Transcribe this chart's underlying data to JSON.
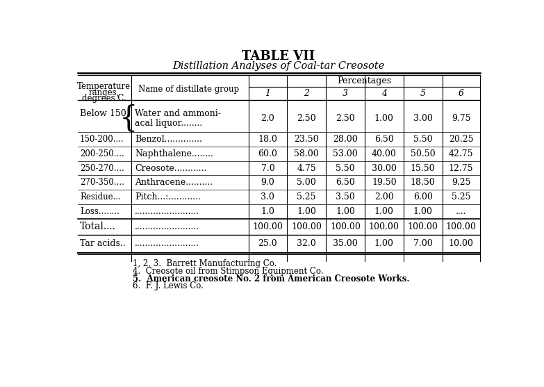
{
  "title1": "TABLE VII",
  "title2": "Distillation Analyses of Coal-tar Creosote",
  "col_header_temp": [
    "Temperature",
    "ranges,",
    "degrees C."
  ],
  "col_header_mid": "Name of distillate group",
  "col_header_pct": "Percentages",
  "col_numbers": [
    "1",
    "2",
    "3",
    "4",
    "5",
    "6"
  ],
  "rows": [
    {
      "temp": "Below 150",
      "brace": true,
      "name_line1": "Water and ammoni-",
      "name_line2": "acal liquor........",
      "values": [
        "2.0",
        "2.50",
        "2.50",
        "1.00",
        "3.00",
        "9.75"
      ]
    },
    {
      "temp": "150-200....",
      "brace": false,
      "name_line1": "Benzol..............",
      "name_line2": "",
      "values": [
        "18.0",
        "23.50",
        "28.00",
        "6.50",
        "5.50",
        "20.25"
      ]
    },
    {
      "temp": "200-250....",
      "brace": false,
      "name_line1": "Naphthalene........",
      "name_line2": "",
      "values": [
        "60.0",
        "58.00",
        "53.00",
        "40.00",
        "50.50",
        "42.75"
      ]
    },
    {
      "temp": "250-270....",
      "brace": false,
      "name_line1": "Creosote............",
      "name_line2": "",
      "values": [
        "7.0",
        "4.75",
        "5.50",
        "30.00",
        "15.50",
        "12.75"
      ]
    },
    {
      "temp": "270-350....",
      "brace": false,
      "name_line1": "Anthracene..........",
      "name_line2": "",
      "values": [
        "9.0",
        "5.00",
        "6.50",
        "19.50",
        "18.50",
        "9.25"
      ]
    },
    {
      "temp": "Residue...",
      "brace": false,
      "name_line1": "Pitch...:............",
      "name_line2": "",
      "values": [
        "3.0",
        "5.25",
        "3.50",
        "2.00",
        "6.00",
        "5.25"
      ]
    },
    {
      "temp": "Loss........",
      "brace": false,
      "name_line1": "........................",
      "name_line2": "",
      "values": [
        "1.0",
        "1.00",
        "1.00",
        "1.00",
        "1.00",
        "...."
      ]
    }
  ],
  "total_row": {
    "temp": "Total....",
    "name_line1": "........................",
    "values": [
      "100.00",
      "100.00",
      "100.00",
      "100.00",
      "100.00",
      "100.00"
    ]
  },
  "tar_row": {
    "temp": "Tar acids..",
    "name_line1": "........................",
    "values": [
      "25.0",
      "32.0",
      "35.00",
      "1.00",
      "7.00",
      "10.00"
    ]
  },
  "footnotes": [
    "1, 2, 3.  Barrett Manufacturing Co.",
    "4.  Creosote oil from Stimpson Equipment Co.",
    "5.  American creosote No. 2 from American Creosote Works.",
    "6.  F. J. Lewis Co."
  ],
  "bg_color": "#ffffff",
  "text_color": "#000000"
}
